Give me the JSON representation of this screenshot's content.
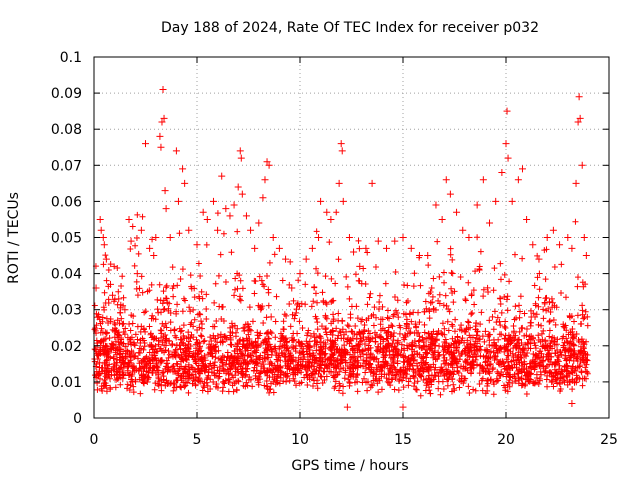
{
  "chart_data": {
    "type": "scatter",
    "title": "Day 188 of 2024, Rate Of TEC Index for receiver p032",
    "xlabel": "GPS time / hours",
    "ylabel": "ROTI / TECUs",
    "xlim": [
      0,
      25
    ],
    "ylim": [
      0,
      0.1
    ],
    "x_ticks": [
      0,
      5,
      10,
      15,
      20,
      25
    ],
    "x_tick_labels": [
      "0",
      "5",
      "10",
      "15",
      "20",
      "25"
    ],
    "y_ticks": [
      0,
      0.01,
      0.02,
      0.03,
      0.04,
      0.05,
      0.06,
      0.07,
      0.08,
      0.09,
      0.1
    ],
    "y_tick_labels": [
      "0",
      "0.01",
      "0.02",
      "0.03",
      "0.04",
      "0.05",
      "0.06",
      "0.07",
      "0.08",
      "0.09",
      "0.1"
    ],
    "grid": true,
    "marker": "+",
    "color": "#ff0000",
    "points": [
      [
        0.1,
        0.036
      ],
      [
        0.3,
        0.055
      ],
      [
        0.35,
        0.052
      ],
      [
        0.45,
        0.05
      ],
      [
        0.5,
        0.048
      ],
      [
        0.6,
        0.044
      ],
      [
        0.8,
        0.037
      ],
      [
        0.9,
        0.034
      ],
      [
        1.2,
        0.033
      ],
      [
        1.5,
        0.03
      ],
      [
        1.7,
        0.055
      ],
      [
        1.8,
        0.049
      ],
      [
        2.1,
        0.04
      ],
      [
        2.3,
        0.052
      ],
      [
        2.5,
        0.076
      ],
      [
        2.7,
        0.047
      ],
      [
        2.9,
        0.045
      ],
      [
        3.0,
        0.05
      ],
      [
        3.2,
        0.078
      ],
      [
        3.25,
        0.075
      ],
      [
        3.3,
        0.082
      ],
      [
        3.35,
        0.091
      ],
      [
        3.4,
        0.083
      ],
      [
        3.45,
        0.063
      ],
      [
        3.5,
        0.058
      ],
      [
        3.7,
        0.05
      ],
      [
        4.0,
        0.074
      ],
      [
        4.1,
        0.06
      ],
      [
        4.3,
        0.069
      ],
      [
        4.4,
        0.065
      ],
      [
        4.6,
        0.052
      ],
      [
        5.0,
        0.048
      ],
      [
        5.3,
        0.057
      ],
      [
        5.5,
        0.055
      ],
      [
        5.8,
        0.06
      ],
      [
        6.0,
        0.052
      ],
      [
        6.2,
        0.067
      ],
      [
        6.4,
        0.058
      ],
      [
        6.6,
        0.056
      ],
      [
        6.8,
        0.059
      ],
      [
        7.0,
        0.064
      ],
      [
        7.1,
        0.074
      ],
      [
        7.15,
        0.072
      ],
      [
        7.2,
        0.062
      ],
      [
        7.4,
        0.056
      ],
      [
        7.6,
        0.052
      ],
      [
        7.8,
        0.047
      ],
      [
        8.0,
        0.054
      ],
      [
        8.2,
        0.061
      ],
      [
        8.3,
        0.066
      ],
      [
        8.4,
        0.071
      ],
      [
        8.5,
        0.07
      ],
      [
        8.7,
        0.05
      ],
      [
        9.0,
        0.047
      ],
      [
        9.3,
        0.044
      ],
      [
        9.6,
        0.036
      ],
      [
        10.0,
        0.04
      ],
      [
        10.3,
        0.044
      ],
      [
        10.6,
        0.047
      ],
      [
        10.9,
        0.05
      ],
      [
        11.0,
        0.06
      ],
      [
        11.3,
        0.057
      ],
      [
        11.5,
        0.055
      ],
      [
        11.9,
        0.065
      ],
      [
        12.0,
        0.076
      ],
      [
        12.05,
        0.074
      ],
      [
        12.1,
        0.06
      ],
      [
        12.4,
        0.05
      ],
      [
        12.6,
        0.046
      ],
      [
        12.9,
        0.042
      ],
      [
        13.2,
        0.047
      ],
      [
        13.5,
        0.065
      ],
      [
        13.8,
        0.049
      ],
      [
        14.2,
        0.047
      ],
      [
        14.6,
        0.049
      ],
      [
        15.0,
        0.05
      ],
      [
        15.4,
        0.047
      ],
      [
        15.8,
        0.045
      ],
      [
        16.2,
        0.045
      ],
      [
        16.6,
        0.059
      ],
      [
        16.9,
        0.055
      ],
      [
        17.1,
        0.066
      ],
      [
        17.3,
        0.062
      ],
      [
        17.6,
        0.057
      ],
      [
        17.9,
        0.052
      ],
      [
        18.2,
        0.05
      ],
      [
        18.6,
        0.059
      ],
      [
        18.9,
        0.066
      ],
      [
        19.2,
        0.054
      ],
      [
        19.5,
        0.06
      ],
      [
        19.8,
        0.068
      ],
      [
        20.0,
        0.076
      ],
      [
        20.05,
        0.085
      ],
      [
        20.1,
        0.072
      ],
      [
        20.3,
        0.06
      ],
      [
        20.6,
        0.066
      ],
      [
        20.8,
        0.069
      ],
      [
        21.0,
        0.055
      ],
      [
        21.3,
        0.048
      ],
      [
        21.6,
        0.044
      ],
      [
        22.0,
        0.05
      ],
      [
        22.3,
        0.052
      ],
      [
        22.6,
        0.048
      ],
      [
        23.0,
        0.05
      ],
      [
        23.2,
        0.047
      ],
      [
        23.4,
        0.065
      ],
      [
        23.5,
        0.082
      ],
      [
        23.55,
        0.089
      ],
      [
        23.6,
        0.083
      ],
      [
        23.7,
        0.07
      ],
      [
        23.8,
        0.05
      ],
      [
        23.9,
        0.045
      ],
      [
        0.2,
        0.012
      ],
      [
        0.6,
        0.009
      ],
      [
        1.0,
        0.015
      ],
      [
        1.4,
        0.011
      ],
      [
        1.9,
        0.018
      ],
      [
        2.4,
        0.013
      ],
      [
        2.8,
        0.02
      ],
      [
        3.6,
        0.014
      ],
      [
        4.2,
        0.019
      ],
      [
        4.8,
        0.012
      ],
      [
        5.4,
        0.016
      ],
      [
        5.9,
        0.022
      ],
      [
        6.5,
        0.017
      ],
      [
        7.3,
        0.025
      ],
      [
        7.9,
        0.02
      ],
      [
        8.6,
        0.028
      ],
      [
        9.1,
        0.022
      ],
      [
        9.8,
        0.016
      ],
      [
        10.4,
        0.02
      ],
      [
        10.8,
        0.013
      ],
      [
        11.6,
        0.024
      ],
      [
        12.2,
        0.018
      ],
      [
        12.8,
        0.014
      ],
      [
        13.3,
        0.01
      ],
      [
        13.9,
        0.019
      ],
      [
        14.4,
        0.023
      ],
      [
        15.1,
        0.017
      ],
      [
        15.6,
        0.026
      ],
      [
        16.0,
        0.02
      ],
      [
        16.5,
        0.03
      ],
      [
        17.0,
        0.015
      ],
      [
        17.7,
        0.021
      ],
      [
        18.4,
        0.017
      ],
      [
        19.0,
        0.024
      ],
      [
        19.6,
        0.018
      ],
      [
        20.2,
        0.022
      ],
      [
        20.9,
        0.015
      ],
      [
        21.5,
        0.012
      ],
      [
        22.1,
        0.018
      ],
      [
        22.7,
        0.013
      ],
      [
        23.3,
        0.02
      ],
      [
        23.85,
        0.016
      ],
      [
        12.3,
        0.003
      ],
      [
        15.0,
        0.003
      ],
      [
        23.2,
        0.004
      ]
    ]
  }
}
